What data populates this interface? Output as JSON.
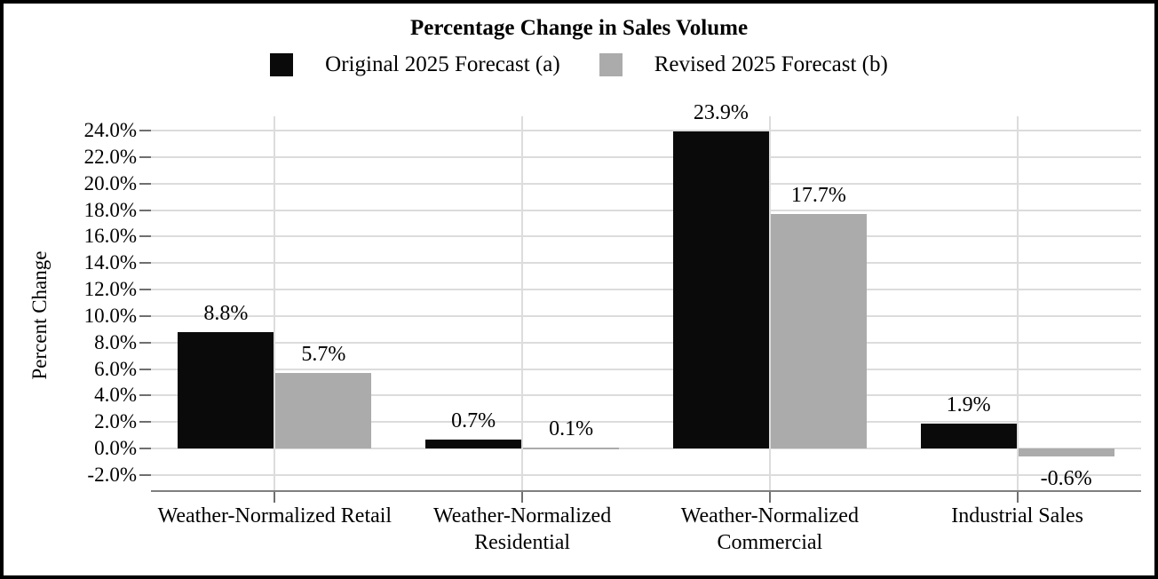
{
  "frame": {
    "border_color": "#000000",
    "background": "#ffffff"
  },
  "chart_data": {
    "type": "bar",
    "title": "Percentage Change in Sales Volume",
    "ylabel": "Percent Change",
    "xlabel": "",
    "grid": true,
    "legend_position": "top",
    "categories": [
      "Weather-Normalized Retail",
      "Weather-Normalized Residential",
      "Weather-Normalized Commercial",
      "Industrial Sales"
    ],
    "series": [
      {
        "name": "Original 2025 Forecast (a)",
        "color": "#0a0a0a",
        "values": [
          8.8,
          0.7,
          23.9,
          1.9
        ],
        "value_labels": [
          "8.8%",
          "0.7%",
          "23.9%",
          "1.9%"
        ]
      },
      {
        "name": "Revised 2025 Forecast (b)",
        "color": "#ababab",
        "values": [
          5.7,
          0.1,
          17.7,
          -0.6
        ],
        "value_labels": [
          "5.7%",
          "0.1%",
          "17.7%",
          "-0.6%"
        ]
      }
    ],
    "y_axis": {
      "min": -2.0,
      "max": 24.0,
      "step": 2.0,
      "ylim": [
        -3.2,
        25.1
      ],
      "tick_labels": [
        "24.0%",
        "22.0%",
        "20.0%",
        "18.0%",
        "16.0%",
        "14.0%",
        "12.0%",
        "10.0%",
        "8.0%",
        "6.0%",
        "4.0%",
        "2.0%",
        "0.0%",
        "-2.0%"
      ]
    },
    "colors": {
      "gridline": "#dcdcdc",
      "axis_line": "#7f7f7f",
      "tick": "#6f6f6f",
      "text": "#000000"
    }
  }
}
